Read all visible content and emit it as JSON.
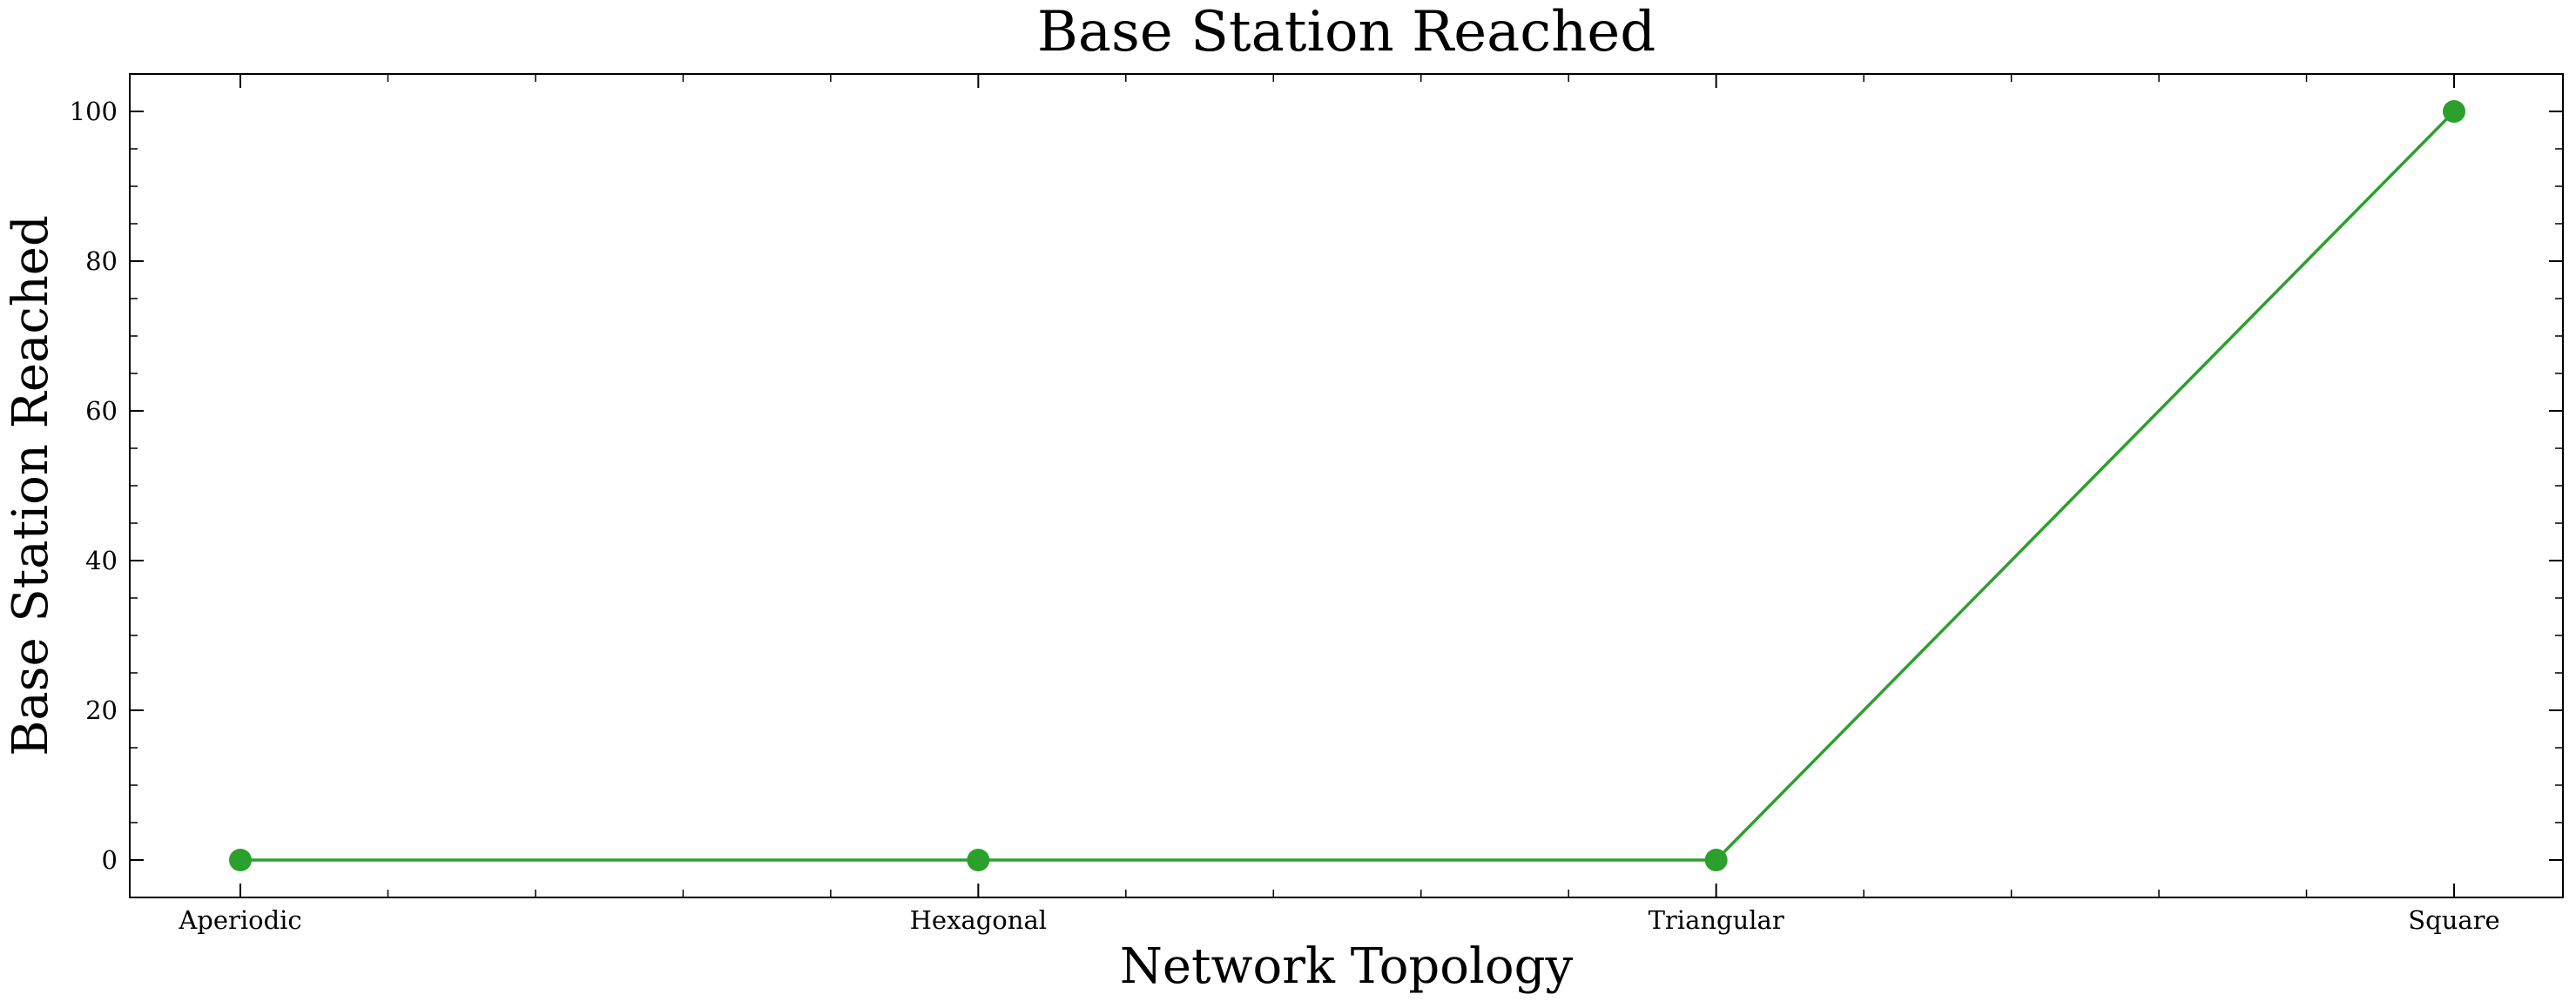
{
  "chart_data": {
    "type": "line",
    "title": "Base Station Reached",
    "xlabel": "Network Topology",
    "ylabel": "Base Station Reached",
    "categories": [
      "Aperiodic",
      "Hexagonal",
      "Triangular",
      "Square"
    ],
    "series": [
      {
        "values": [
          0,
          0,
          0,
          100
        ],
        "color": "#2ca02c"
      }
    ],
    "ylim": [
      -5,
      105
    ],
    "yticks": [
      0,
      20,
      40,
      60,
      80,
      100
    ],
    "y_minor_step": 5,
    "x_minor_ticks_per_interval": 4,
    "grid": false,
    "legend": "none",
    "ticks_direction": "in",
    "markers": "filled-circle"
  }
}
